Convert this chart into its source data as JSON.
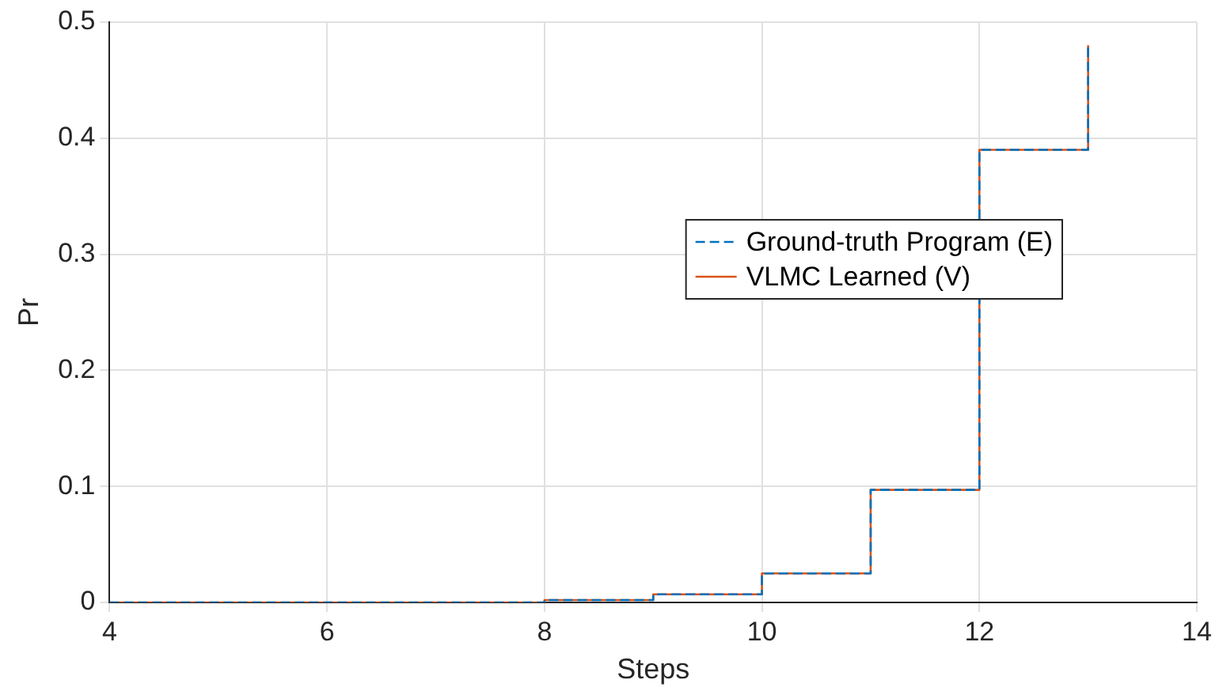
{
  "chart_data": {
    "type": "step",
    "xlabel": "Steps",
    "ylabel": "Pr",
    "x": [
      4,
      5,
      6,
      7,
      8,
      9,
      10,
      11,
      12,
      13
    ],
    "series": [
      {
        "name": "Ground-truth Program (E)",
        "color": "#0072bd",
        "line_style": "dashed",
        "values": [
          0,
          0,
          0,
          0,
          0.002,
          0.007,
          0.025,
          0.097,
          0.39,
          0.48
        ]
      },
      {
        "name": "VLMC Learned (V)",
        "color": "#d95319",
        "line_style": "solid",
        "values": [
          0,
          0,
          0,
          0,
          0.002,
          0.007,
          0.025,
          0.097,
          0.39,
          0.48
        ]
      }
    ],
    "xlim": [
      4,
      14
    ],
    "xticks": [
      4,
      6,
      8,
      10,
      12,
      14
    ],
    "ylim": [
      0,
      0.5
    ],
    "yticks": [
      0,
      0.1,
      0.2,
      0.3,
      0.4,
      0.5
    ],
    "grid": true,
    "legend": "right"
  }
}
